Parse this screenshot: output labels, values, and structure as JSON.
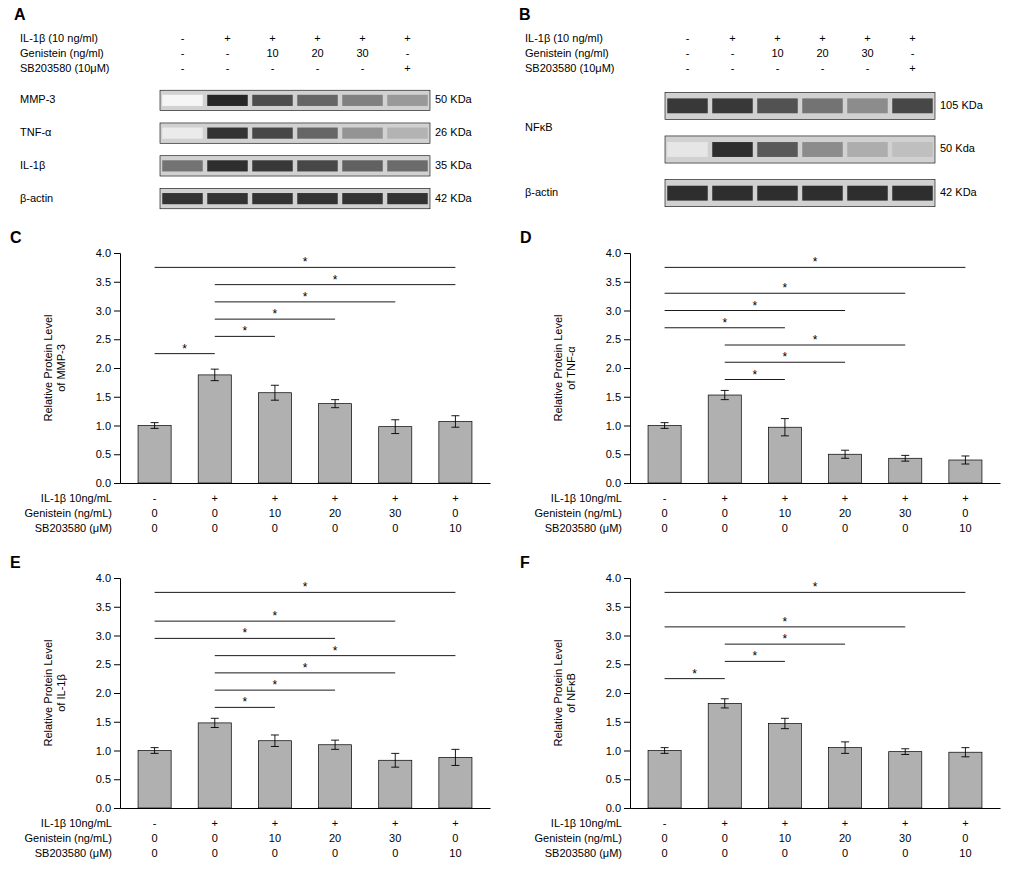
{
  "chart_data": [
    {
      "type": "blot",
      "title": "A",
      "conditions": [
        {
          "name": "IL-1β (10 ng/ml)",
          "values": [
            "-",
            "+",
            "+",
            "+",
            "+",
            "+"
          ]
        },
        {
          "name": "Genistein (ng/ml)",
          "values": [
            "-",
            "-",
            "10",
            "20",
            "30",
            "-"
          ]
        },
        {
          "name": "SB203580 (10μM)",
          "values": [
            "-",
            "-",
            "-",
            "-",
            "-",
            "+"
          ]
        }
      ],
      "rows": [
        {
          "name": "MMP-3",
          "size": "50 KDa",
          "values": [
            0.04,
            0.85,
            0.7,
            0.6,
            0.5,
            0.4
          ]
        },
        {
          "name": "TNF-α",
          "size": "26 KDa",
          "values": [
            0.08,
            0.8,
            0.72,
            0.6,
            0.42,
            0.3
          ]
        },
        {
          "name": "IL-1β",
          "size": "35 KDa",
          "values": [
            0.55,
            0.82,
            0.78,
            0.72,
            0.62,
            0.58
          ]
        },
        {
          "name": "β-actin",
          "size": "42 KDa",
          "values": [
            0.8,
            0.8,
            0.8,
            0.8,
            0.8,
            0.8
          ]
        }
      ]
    },
    {
      "type": "blot",
      "title": "B",
      "conditions": [
        {
          "name": "IL-1β (10 ng/ml)",
          "values": [
            "-",
            "+",
            "+",
            "+",
            "+",
            "+"
          ]
        },
        {
          "name": "Genistein (ng/ml)",
          "values": [
            "-",
            "-",
            "10",
            "20",
            "30",
            "-"
          ]
        },
        {
          "name": "SB203580 (10μM)",
          "values": [
            "-",
            "-",
            "-",
            "-",
            "-",
            "+"
          ]
        }
      ],
      "rows": [
        {
          "name": "NFκB",
          "size": "105 KDa",
          "values": [
            0.78,
            0.78,
            0.68,
            0.55,
            0.45,
            0.72
          ]
        },
        {
          "name": null,
          "size": "50 Kda",
          "values": [
            0.1,
            0.82,
            0.65,
            0.45,
            0.32,
            0.25
          ]
        },
        {
          "name": "β-actin",
          "size": "42 KDa",
          "values": [
            0.82,
            0.82,
            0.82,
            0.82,
            0.82,
            0.82
          ]
        }
      ]
    },
    {
      "type": "bar",
      "title": "C",
      "y_label": "Relative Protein Level\nof MMP-3",
      "values": [
        1.0,
        1.88,
        1.57,
        1.38,
        0.98,
        1.07
      ],
      "errors": [
        0.05,
        0.1,
        0.13,
        0.07,
        0.12,
        0.1
      ],
      "color": "#b0b0b0",
      "ylim": [
        0,
        4.0
      ],
      "yticks": [
        {
          "value": 0.0,
          "label": "0.0"
        },
        0.5,
        {
          "value": 1.0,
          "label": "1.0"
        },
        1.5,
        {
          "value": 2.0,
          "label": "2.0"
        },
        2.5,
        {
          "value": 3.0,
          "label": "3.0"
        },
        3.5,
        {
          "value": 4.0,
          "label": "4.0"
        }
      ],
      "tick_labels": "y",
      "annotations": [
        {
          "from": 0,
          "to": 1,
          "y": 2.25,
          "text": "*"
        },
        {
          "from": 1,
          "to": 2,
          "y": 2.55,
          "text": "*"
        },
        {
          "from": 1,
          "to": 3,
          "y": 2.85,
          "text": "*"
        },
        {
          "from": 1,
          "to": 4,
          "y": 3.15,
          "text": "*"
        },
        {
          "from": 1,
          "to": 5,
          "y": 3.45,
          "text": "*"
        },
        {
          "from": 0,
          "to": 5,
          "y": 3.75,
          "text": "*"
        }
      ],
      "conditions": [
        {
          "name": "IL-1β 10ng/mL",
          "values": [
            "-",
            "+",
            "+",
            "+",
            "+",
            "+"
          ]
        },
        {
          "name": "Genistein (ng/mL)",
          "values": [
            "0",
            "0",
            "10",
            "20",
            "30",
            "0"
          ]
        },
        {
          "name": "SB203580 (μM)",
          "values": [
            "0",
            "0",
            "0",
            "0",
            "0",
            "10"
          ]
        }
      ]
    },
    {
      "type": "bar",
      "title": "D",
      "y_label": "Relative Protein Level\nof TNF-α",
      "values": [
        1.0,
        1.53,
        0.97,
        0.5,
        0.43,
        0.4
      ],
      "errors": [
        0.05,
        0.08,
        0.15,
        0.07,
        0.05,
        0.07
      ],
      "color": "#b0b0b0",
      "ylim": [
        0,
        4.0
      ],
      "yticks": [
        {
          "value": 0.0,
          "label": "0.0"
        },
        0.5,
        {
          "value": 1.0,
          "label": "1.0"
        },
        1.5,
        {
          "value": 2.0,
          "label": "2.0"
        },
        2.5,
        {
          "value": 3.0,
          "label": "3.0"
        },
        3.5,
        {
          "value": 4.0,
          "label": "4.0"
        }
      ],
      "tick_labels": "y",
      "annotations": [
        {
          "from": 1,
          "to": 2,
          "y": 1.8,
          "text": "*"
        },
        {
          "from": 1,
          "to": 3,
          "y": 2.1,
          "text": "*"
        },
        {
          "from": 1,
          "to": 4,
          "y": 2.4,
          "text": "*"
        },
        {
          "from": 0,
          "to": 2,
          "y": 2.7,
          "text": "*"
        },
        {
          "from": 0,
          "to": 3,
          "y": 3.0,
          "text": "*"
        },
        {
          "from": 0,
          "to": 4,
          "y": 3.3,
          "text": "*"
        },
        {
          "from": 0,
          "to": 5,
          "y": 3.75,
          "text": "*"
        }
      ],
      "conditions": [
        {
          "name": "IL-1β 10ng/mL",
          "values": [
            "-",
            "+",
            "+",
            "+",
            "+",
            "+"
          ]
        },
        {
          "name": "Genistein (ng/mL)",
          "values": [
            "0",
            "0",
            "10",
            "20",
            "30",
            "0"
          ]
        },
        {
          "name": "SB203580 (μM)",
          "values": [
            "0",
            "0",
            "0",
            "0",
            "0",
            "10"
          ]
        }
      ]
    },
    {
      "type": "bar",
      "title": "E",
      "y_label": "Relative Protein Level\nof IL-1β",
      "values": [
        1.0,
        1.48,
        1.17,
        1.1,
        0.83,
        0.88
      ],
      "errors": [
        0.05,
        0.08,
        0.1,
        0.08,
        0.12,
        0.14
      ],
      "color": "#b0b0b0",
      "ylim": [
        0,
        4.0
      ],
      "yticks": [
        {
          "value": 0.0,
          "label": "0.0"
        },
        0.5,
        {
          "value": 1.0,
          "label": "1.0"
        },
        1.5,
        {
          "value": 2.0,
          "label": "2.0"
        },
        2.5,
        {
          "value": 3.0,
          "label": "3.0"
        },
        3.5,
        {
          "value": 4.0,
          "label": "4.0"
        }
      ],
      "tick_labels": "y",
      "annotations": [
        {
          "from": 1,
          "to": 2,
          "y": 1.75,
          "text": "*"
        },
        {
          "from": 1,
          "to": 3,
          "y": 2.05,
          "text": "*"
        },
        {
          "from": 1,
          "to": 4,
          "y": 2.35,
          "text": "*"
        },
        {
          "from": 1,
          "to": 5,
          "y": 2.65,
          "text": "*"
        },
        {
          "from": 0,
          "to": 3,
          "y": 2.95,
          "text": "*"
        },
        {
          "from": 0,
          "to": 4,
          "y": 3.25,
          "text": "*"
        },
        {
          "from": 0,
          "to": 5,
          "y": 3.75,
          "text": "*"
        }
      ],
      "conditions": [
        {
          "name": "IL-1β 10ng/mL",
          "values": [
            "-",
            "+",
            "+",
            "+",
            "+",
            "+"
          ]
        },
        {
          "name": "Genistein (ng/mL)",
          "values": [
            "0",
            "0",
            "10",
            "20",
            "30",
            "0"
          ]
        },
        {
          "name": "SB203580 (μM)",
          "values": [
            "0",
            "0",
            "0",
            "0",
            "0",
            "10"
          ]
        }
      ]
    },
    {
      "type": "bar",
      "title": "F",
      "y_label": "Relative Protein Level\nof NFκB",
      "values": [
        1.0,
        1.82,
        1.47,
        1.05,
        0.98,
        0.97
      ],
      "errors": [
        0.05,
        0.08,
        0.09,
        0.1,
        0.05,
        0.08
      ],
      "color": "#b0b0b0",
      "ylim": [
        0,
        4.0
      ],
      "yticks": [
        {
          "value": 0.0,
          "label": "0.0"
        },
        0.5,
        {
          "value": 1.0,
          "label": "1.0"
        },
        1.5,
        {
          "value": 2.0,
          "label": "2.0"
        },
        2.5,
        {
          "value": 3.0,
          "label": "3.0"
        },
        3.5,
        {
          "value": 4.0,
          "label": "4.0"
        }
      ],
      "tick_labels": "y",
      "annotations": [
        {
          "from": 0,
          "to": 1,
          "y": 2.25,
          "text": "*"
        },
        {
          "from": 1,
          "to": 2,
          "y": 2.55,
          "text": "*"
        },
        {
          "from": 1,
          "to": 3,
          "y": 2.85,
          "text": "*"
        },
        {
          "from": 0,
          "to": 4,
          "y": 3.15,
          "text": "*"
        },
        {
          "from": 0,
          "to": 5,
          "y": 3.75,
          "text": "*"
        }
      ],
      "conditions": [
        {
          "name": "IL-1β 10ng/mL",
          "values": [
            "-",
            "+",
            "+",
            "+",
            "+",
            "+"
          ]
        },
        {
          "name": "Genistein (ng/mL)",
          "values": [
            "0",
            "0",
            "10",
            "20",
            "30",
            "0"
          ]
        },
        {
          "name": "SB203580 (μM)",
          "values": [
            "0",
            "0",
            "0",
            "0",
            "0",
            "10"
          ]
        }
      ]
    }
  ]
}
